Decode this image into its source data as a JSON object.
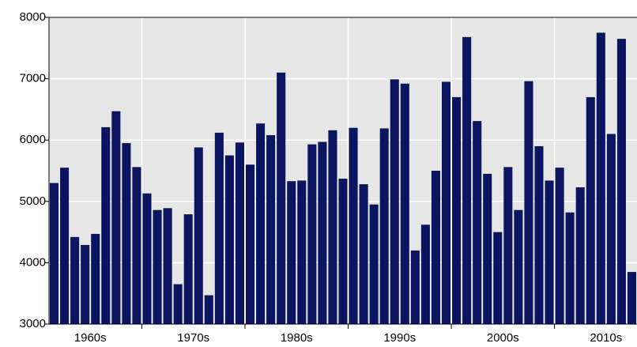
{
  "chart_data": {
    "type": "bar",
    "categories": [
      null,
      null,
      null,
      null,
      null,
      null,
      null,
      null,
      null,
      null,
      null,
      null,
      null,
      null,
      null,
      null,
      null,
      null,
      null,
      null,
      null,
      null,
      null,
      null,
      null,
      null,
      null,
      null,
      null,
      null,
      null,
      null,
      null,
      null,
      null,
      null,
      null,
      null,
      null,
      null,
      null,
      null,
      null,
      null,
      null,
      null,
      null,
      null,
      null,
      null,
      null,
      null,
      null,
      null,
      null,
      null,
      null
    ],
    "values": [
      5300,
      5550,
      4420,
      4290,
      4470,
      6210,
      6470,
      5950,
      5560,
      5130,
      4860,
      4890,
      3650,
      4790,
      5880,
      3470,
      6120,
      5750,
      5960,
      5600,
      6270,
      6080,
      7100,
      5330,
      5340,
      5930,
      5970,
      6160,
      5370,
      6200,
      5280,
      4950,
      6190,
      6990,
      6920,
      4200,
      4620,
      5500,
      6950,
      6700,
      7680,
      6310,
      5450,
      4500,
      5560,
      4860,
      6960,
      5900,
      5340,
      5550,
      4820,
      5230,
      6700,
      7750,
      6100,
      7650,
      3850
    ],
    "color": "#0b1461",
    "xlim": [
      -0.5,
      56.5
    ],
    "xticks": [
      {
        "value": 3.5,
        "label": "1960s"
      },
      {
        "value": 13.5,
        "label": "1970s"
      },
      {
        "value": 23.5,
        "label": "1980s"
      },
      {
        "value": 33.5,
        "label": "1990s"
      },
      {
        "value": 43.5,
        "label": "2000s"
      },
      {
        "value": 53.5,
        "label": "2010s"
      }
    ],
    "ylim": [
      3000,
      8000
    ],
    "yticks": [
      3000,
      4000,
      5000,
      6000,
      7000,
      8000
    ],
    "grid": true
  }
}
